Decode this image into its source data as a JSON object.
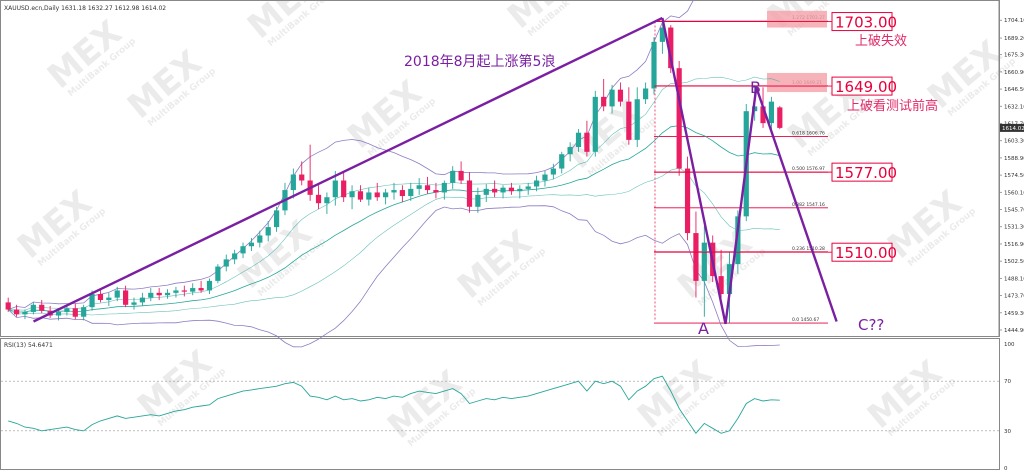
{
  "chart_data": [
    {
      "type": "candlestick",
      "symbol_header": "XAUUSD.ecn,Daily  1631.18 1632.27 1612.98 1614.02",
      "current_price": "1614.02",
      "y_ticks": [
        "1704.10",
        "1689.20",
        "1675.30",
        "1660.90",
        "1646.50",
        "1632.10",
        "1617.70",
        "1603.30",
        "1588.90",
        "1574.50",
        "1560.10",
        "1545.70",
        "1531.30",
        "1516.90",
        "1502.50",
        "1488.10",
        "1473.70",
        "1459.30",
        "1444.90"
      ],
      "ylim": [
        1444.9,
        1711
      ],
      "candles": [
        [
          1468,
          1472,
          1460,
          1462
        ],
        [
          1462,
          1466,
          1456,
          1458
        ],
        [
          1458,
          1462,
          1454,
          1460
        ],
        [
          1460,
          1468,
          1458,
          1466
        ],
        [
          1466,
          1470,
          1459,
          1461
        ],
        [
          1461,
          1465,
          1455,
          1457
        ],
        [
          1457,
          1463,
          1453,
          1460
        ],
        [
          1460,
          1466,
          1457,
          1463
        ],
        [
          1463,
          1467,
          1454,
          1456
        ],
        [
          1456,
          1466,
          1453,
          1464
        ],
        [
          1464,
          1478,
          1461,
          1475
        ],
        [
          1475,
          1480,
          1468,
          1470
        ],
        [
          1470,
          1476,
          1465,
          1472
        ],
        [
          1472,
          1481,
          1469,
          1478
        ],
        [
          1478,
          1482,
          1464,
          1466
        ],
        [
          1466,
          1472,
          1462,
          1468
        ],
        [
          1468,
          1476,
          1465,
          1472
        ],
        [
          1472,
          1480,
          1469,
          1476
        ],
        [
          1476,
          1480,
          1470,
          1474
        ],
        [
          1474,
          1479,
          1471,
          1476
        ],
        [
          1476,
          1481,
          1472,
          1478
        ],
        [
          1478,
          1482,
          1473,
          1477
        ],
        [
          1477,
          1484,
          1474,
          1480
        ],
        [
          1480,
          1486,
          1476,
          1478
        ],
        [
          1478,
          1488,
          1475,
          1486
        ],
        [
          1486,
          1500,
          1484,
          1498
        ],
        [
          1498,
          1508,
          1494,
          1504
        ],
        [
          1504,
          1512,
          1500,
          1509
        ],
        [
          1509,
          1518,
          1505,
          1515
        ],
        [
          1515,
          1522,
          1511,
          1518
        ],
        [
          1518,
          1528,
          1514,
          1524
        ],
        [
          1524,
          1536,
          1519,
          1531
        ],
        [
          1531,
          1548,
          1527,
          1545
        ],
        [
          1545,
          1568,
          1541,
          1562
        ],
        [
          1562,
          1580,
          1555,
          1575
        ],
        [
          1575,
          1586,
          1566,
          1570
        ],
        [
          1570,
          1600,
          1553,
          1558
        ],
        [
          1558,
          1566,
          1546,
          1551
        ],
        [
          1551,
          1560,
          1542,
          1556
        ],
        [
          1556,
          1578,
          1549,
          1570
        ],
        [
          1570,
          1578,
          1552,
          1556
        ],
        [
          1556,
          1566,
          1546,
          1561
        ],
        [
          1561,
          1566,
          1552,
          1554
        ],
        [
          1554,
          1564,
          1549,
          1560
        ],
        [
          1560,
          1568,
          1553,
          1556
        ],
        [
          1556,
          1563,
          1550,
          1560
        ],
        [
          1560,
          1568,
          1554,
          1562
        ],
        [
          1562,
          1566,
          1552,
          1557
        ],
        [
          1557,
          1568,
          1553,
          1563
        ],
        [
          1563,
          1572,
          1558,
          1566
        ],
        [
          1566,
          1573,
          1559,
          1562
        ],
        [
          1562,
          1568,
          1555,
          1560
        ],
        [
          1560,
          1570,
          1554,
          1568
        ],
        [
          1568,
          1582,
          1563,
          1578
        ],
        [
          1578,
          1586,
          1567,
          1570
        ],
        [
          1570,
          1577,
          1543,
          1548
        ],
        [
          1548,
          1564,
          1543,
          1558
        ],
        [
          1558,
          1567,
          1552,
          1563
        ],
        [
          1563,
          1570,
          1556,
          1560
        ],
        [
          1560,
          1566,
          1555,
          1564
        ],
        [
          1564,
          1568,
          1558,
          1561
        ],
        [
          1561,
          1566,
          1555,
          1563
        ],
        [
          1563,
          1568,
          1558,
          1565
        ],
        [
          1565,
          1574,
          1561,
          1570
        ],
        [
          1570,
          1578,
          1565,
          1575
        ],
        [
          1575,
          1584,
          1571,
          1580
        ],
        [
          1580,
          1594,
          1576,
          1592
        ],
        [
          1592,
          1602,
          1586,
          1598
        ],
        [
          1598,
          1613,
          1594,
          1610
        ],
        [
          1610,
          1620,
          1590,
          1594
        ],
        [
          1594,
          1645,
          1590,
          1640
        ],
        [
          1640,
          1655,
          1628,
          1632
        ],
        [
          1632,
          1650,
          1626,
          1646
        ],
        [
          1646,
          1652,
          1632,
          1636
        ],
        [
          1636,
          1648,
          1600,
          1604
        ],
        [
          1604,
          1648,
          1598,
          1638
        ],
        [
          1638,
          1652,
          1634,
          1647
        ],
        [
          1647,
          1690,
          1642,
          1686
        ],
        [
          1686,
          1703,
          1676,
          1698
        ],
        [
          1698,
          1700,
          1660,
          1664
        ],
        [
          1664,
          1670,
          1574,
          1580
        ],
        [
          1580,
          1590,
          1520,
          1526
        ],
        [
          1526,
          1544,
          1472,
          1486
        ],
        [
          1486,
          1532,
          1456,
          1518
        ],
        [
          1518,
          1524,
          1485,
          1490
        ],
        [
          1490,
          1512,
          1471,
          1475
        ],
        [
          1475,
          1510,
          1451,
          1500
        ],
        [
          1500,
          1545,
          1492,
          1540
        ],
        [
          1540,
          1634,
          1536,
          1628
        ],
        [
          1628,
          1650,
          1620,
          1632
        ],
        [
          1632,
          1648,
          1614,
          1618
        ],
        [
          1618,
          1640,
          1612,
          1636
        ],
        [
          1631.18,
          1632.27,
          1612.98,
          1614.02
        ]
      ],
      "fib_levels": [
        {
          "ratio": "1.272",
          "label": "1.272  1703.27"
        },
        {
          "ratio": "1.00",
          "label": "1.00  1649.21"
        },
        {
          "ratio": "0.618",
          "label": "0.618  1606.76"
        },
        {
          "ratio": "0.500",
          "label": "0.500  1576.97"
        },
        {
          "ratio": "0.382",
          "label": "0.382  1547.16"
        },
        {
          "ratio": "0.236",
          "label": "0.236  1510.28"
        },
        {
          "ratio": "0.0",
          "label": "0.0  1450.67"
        }
      ],
      "price_boxes": [
        {
          "value": "1703.00",
          "note": "上破失效"
        },
        {
          "value": "1649.00",
          "note": "上破看测试前高"
        },
        {
          "value": "1577.00",
          "note": ""
        },
        {
          "value": "1510.00",
          "note": ""
        }
      ],
      "annotations": {
        "wave_text": "2018年8月起上涨第5浪",
        "point_a": "A",
        "point_b": "B",
        "point_c": "C??"
      },
      "colors": {
        "bull": "#26a69a",
        "bear": "#e91e63",
        "trend": "#7b1fa2",
        "band_outer": "#8e7cc3",
        "band_mid": "#26a69a",
        "fib": "#e8003c"
      }
    },
    {
      "type": "line",
      "title": "RSI(13) 54.6471",
      "y_ticks": [
        "100",
        "70",
        "30",
        "0"
      ],
      "ylim": [
        0,
        100
      ],
      "values": [
        38,
        36,
        33,
        32,
        30,
        31,
        32,
        33,
        31,
        30,
        35,
        38,
        40,
        42,
        40,
        41,
        42,
        43,
        42,
        44,
        46,
        47,
        49,
        50,
        51,
        56,
        58,
        60,
        62,
        63,
        64,
        65,
        66,
        68,
        69,
        66,
        58,
        57,
        55,
        58,
        55,
        56,
        54,
        55,
        57,
        56,
        58,
        57,
        60,
        62,
        61,
        60,
        62,
        64,
        60,
        52,
        54,
        56,
        55,
        57,
        56,
        57,
        58,
        60,
        62,
        64,
        66,
        68,
        70,
        62,
        70,
        68,
        70,
        66,
        55,
        62,
        66,
        72,
        74,
        62,
        48,
        38,
        28,
        36,
        32,
        28,
        30,
        40,
        52,
        56,
        54,
        55,
        54.6471
      ],
      "colors": {
        "line": "#26a69a",
        "levels": "#999999"
      }
    }
  ],
  "watermark": {
    "brand": "MEX",
    "sub": "MultiBank Group"
  }
}
